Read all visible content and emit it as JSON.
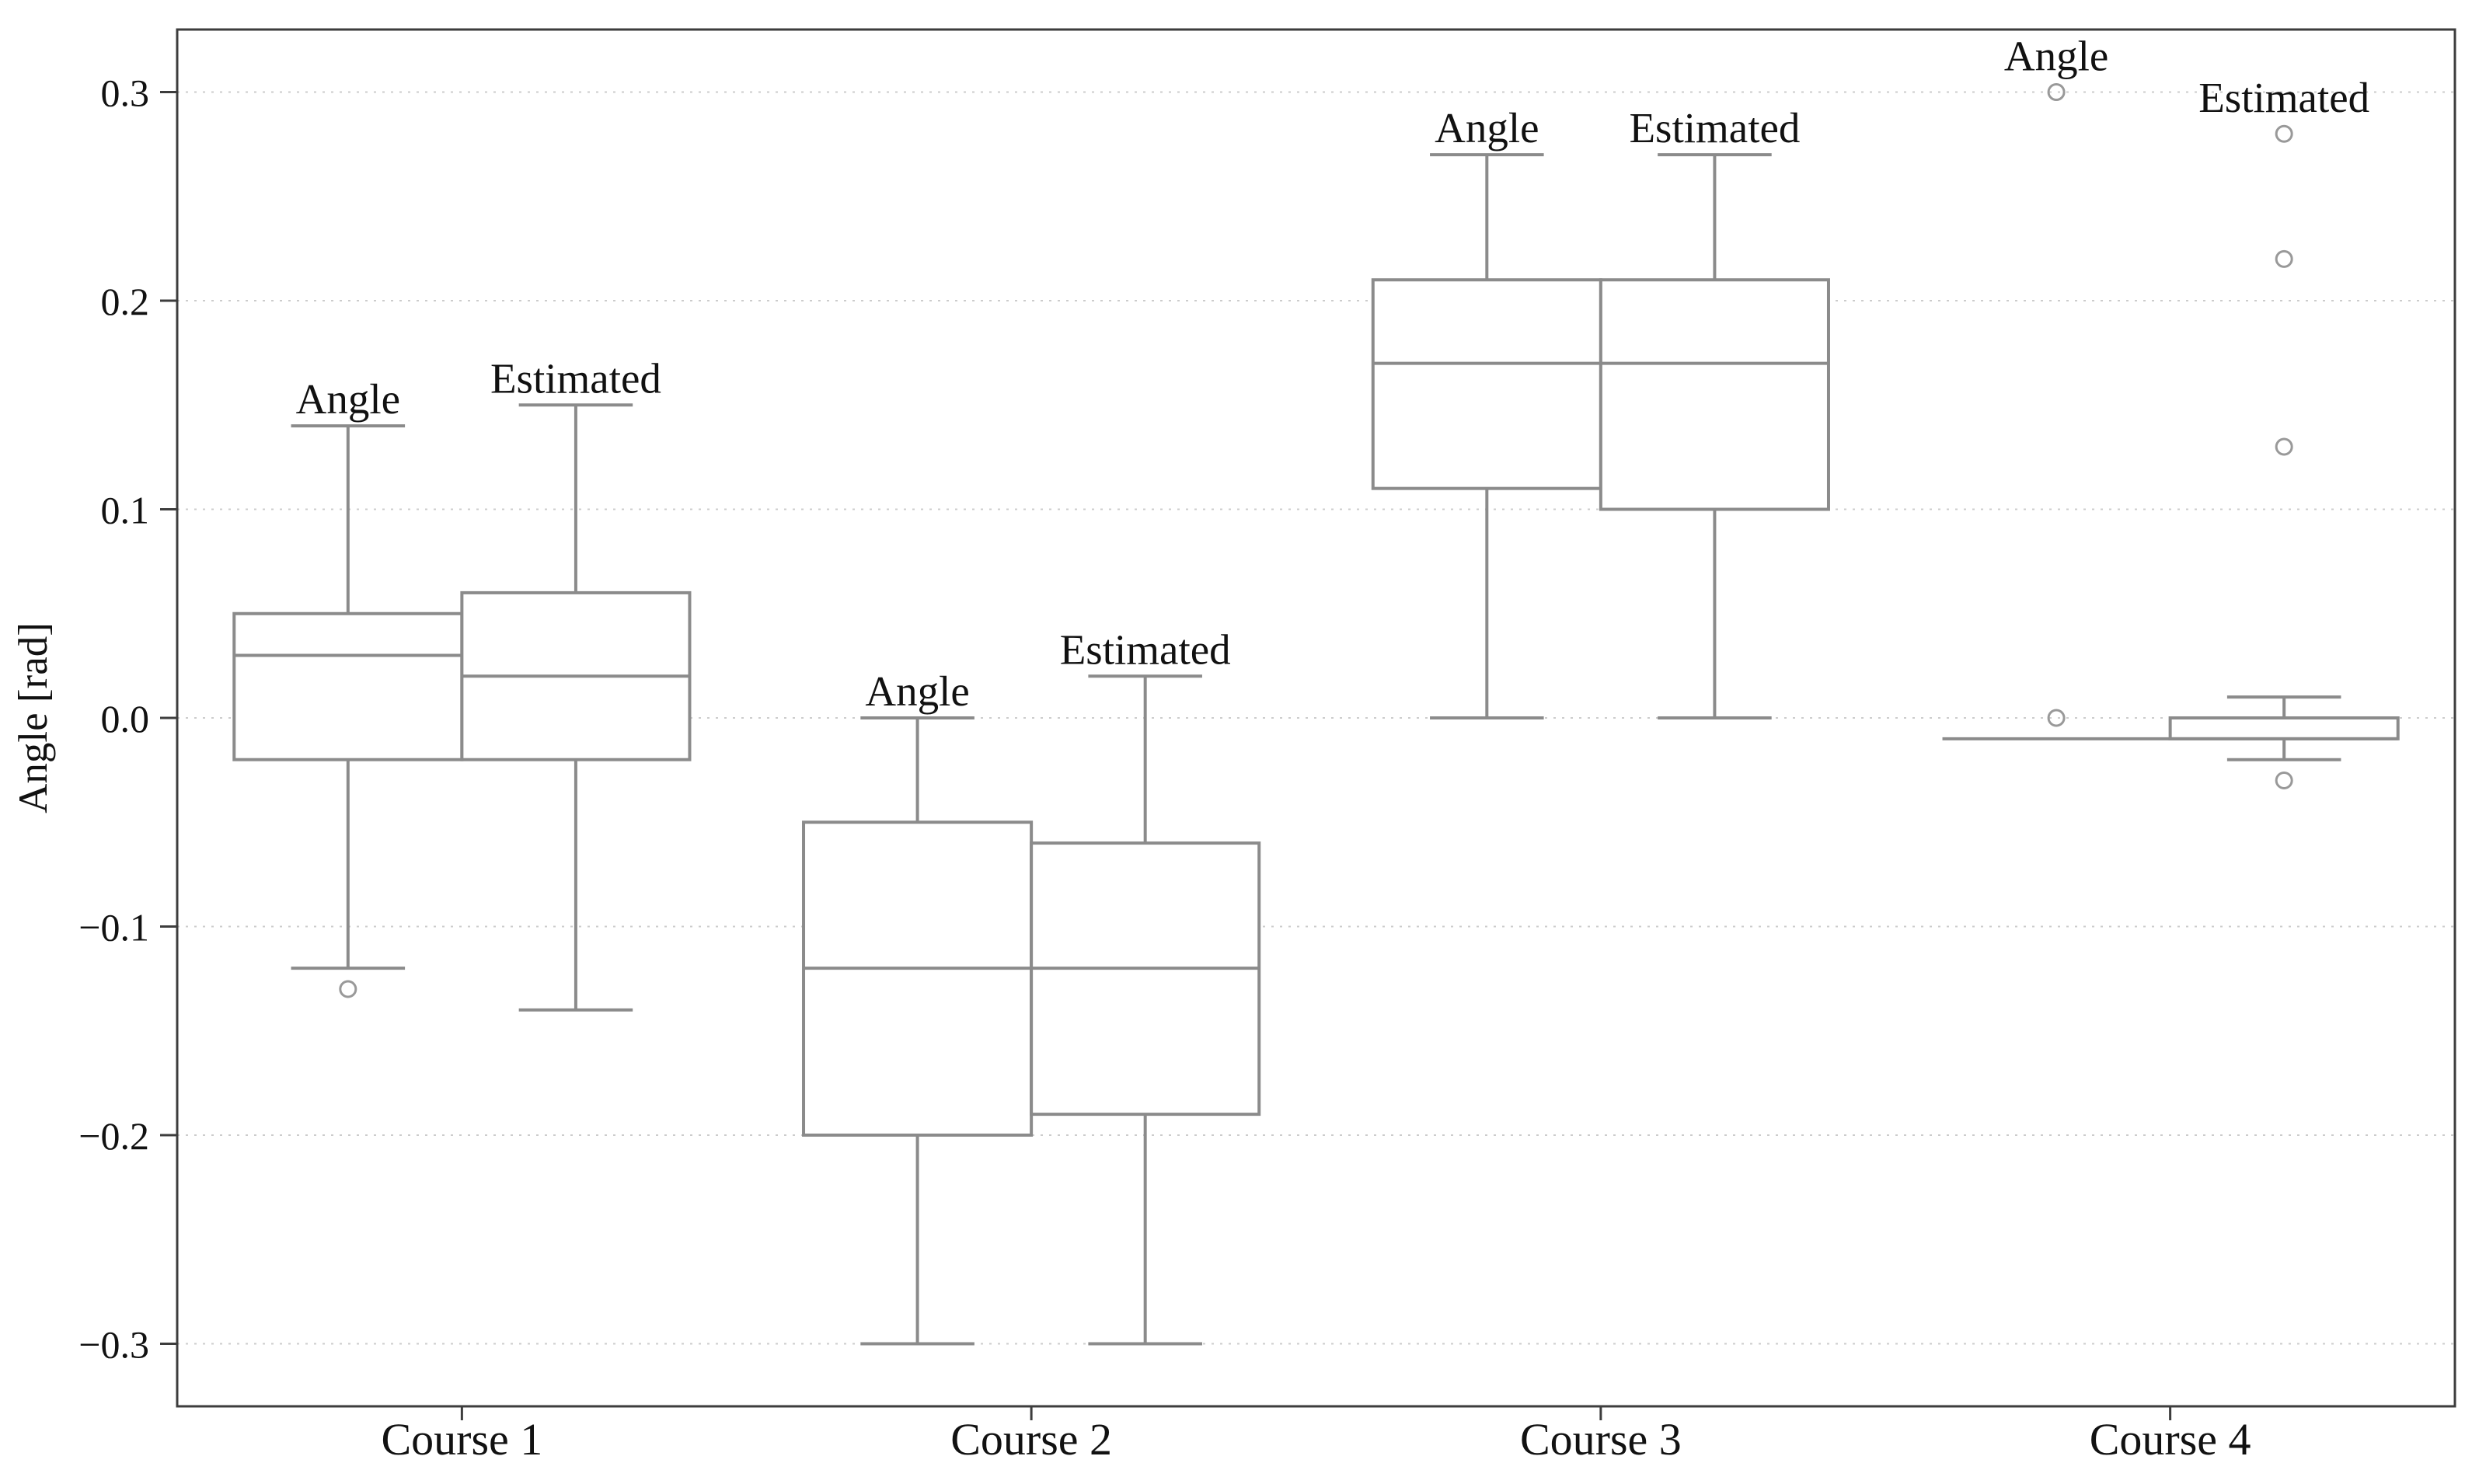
{
  "chart_data": {
    "type": "boxplot",
    "title": "",
    "xlabel": "",
    "ylabel": "Angle [rad]",
    "ylim": [
      -0.33,
      0.33
    ],
    "yticks": [
      0.3,
      0.2,
      0.1,
      0.0,
      -0.1,
      -0.2,
      -0.3
    ],
    "ytick_labels": [
      "0.3",
      "0.2",
      "0.1",
      "0.0",
      "−0.1",
      "−0.2",
      "−0.3"
    ],
    "categories": [
      "Course 1",
      "Course 2",
      "Course 3",
      "Course 4"
    ],
    "series_names": [
      "Angle",
      "Estimated"
    ],
    "grid": "horizontal-dotted",
    "legend_position": "none",
    "box_fill": "#ffffff",
    "courses": [
      {
        "label": "Course 1",
        "boxes": [
          {
            "series": "Angle",
            "whislo": -0.12,
            "q1": -0.02,
            "med": 0.03,
            "q3": 0.05,
            "whishi": 0.14,
            "outliers": [
              -0.13
            ]
          },
          {
            "series": "Estimated",
            "whislo": -0.14,
            "q1": -0.02,
            "med": 0.02,
            "q3": 0.06,
            "whishi": 0.15,
            "outliers": []
          }
        ]
      },
      {
        "label": "Course 2",
        "boxes": [
          {
            "series": "Angle",
            "whislo": -0.3,
            "q1": -0.2,
            "med": -0.12,
            "q3": -0.05,
            "whishi": 0.0,
            "outliers": []
          },
          {
            "series": "Estimated",
            "whislo": -0.3,
            "q1": -0.19,
            "med": -0.12,
            "q3": -0.06,
            "whishi": 0.02,
            "outliers": []
          }
        ]
      },
      {
        "label": "Course 3",
        "boxes": [
          {
            "series": "Angle",
            "whislo": 0.0,
            "q1": 0.11,
            "med": 0.17,
            "q3": 0.21,
            "whishi": 0.27,
            "outliers": []
          },
          {
            "series": "Estimated",
            "whislo": 0.0,
            "q1": 0.1,
            "med": 0.17,
            "q3": 0.21,
            "whishi": 0.27,
            "outliers": []
          }
        ]
      },
      {
        "label": "Course 4",
        "boxes": [
          {
            "series": "Angle",
            "whislo": -0.01,
            "q1": -0.01,
            "med": -0.01,
            "q3": -0.01,
            "whishi": -0.01,
            "outliers": [
              0.3,
              0.0
            ]
          },
          {
            "series": "Estimated",
            "whislo": -0.02,
            "q1": -0.01,
            "med": -0.01,
            "q3": 0.0,
            "whishi": 0.01,
            "outliers": [
              0.28,
              0.22,
              0.13,
              -0.03
            ]
          }
        ]
      }
    ],
    "style": {
      "box_stroke": "#8b8b8b",
      "outlier_stroke": "#999999",
      "frame_stroke": "#3d3d3d",
      "grid_stroke": "#cccccc",
      "text_color": "#111111",
      "background": "#ffffff"
    }
  }
}
